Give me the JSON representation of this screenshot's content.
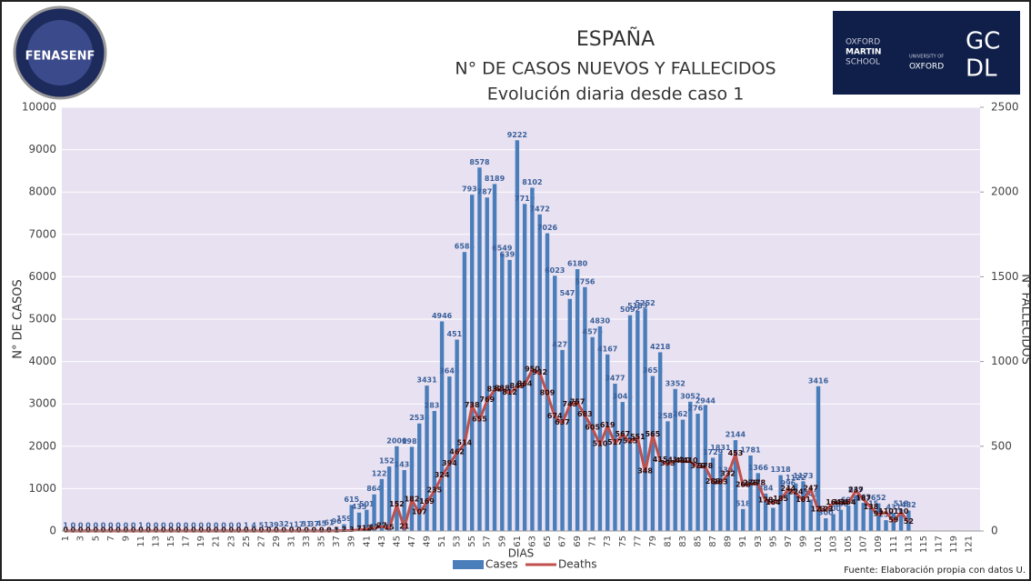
{
  "chart_data": {
    "type": "bar-line",
    "title": "ESPAÑA",
    "subtitle": [
      "N° DE CASOS NUEVOS Y FALLECIDOS",
      "Evolución diaria desde caso 1"
    ],
    "ylabel": "N° DE CASOS",
    "y2label": "N° FALLECIDOS",
    "xlabel": "DIAS",
    "source": "Fuente: Elaboración propia con datos U.",
    "categories": [
      1,
      null,
      3,
      null,
      5,
      null,
      7,
      null,
      9,
      null,
      11,
      null,
      13,
      null,
      15,
      null,
      17,
      null,
      19,
      null,
      21,
      null,
      23,
      null,
      25,
      null,
      27,
      null,
      29,
      null,
      31,
      null,
      33,
      null,
      35,
      null,
      37,
      null,
      39,
      null,
      41,
      null,
      43,
      null,
      45,
      null,
      47,
      null,
      49,
      null,
      51,
      null,
      53,
      null,
      55,
      null,
      57,
      null,
      59,
      null,
      61,
      null,
      63,
      null,
      65,
      null,
      67,
      null,
      69,
      null,
      71,
      null,
      73,
      null,
      75,
      null,
      77,
      null,
      79,
      null,
      81,
      null,
      83,
      null,
      85,
      null,
      87,
      null,
      89,
      null,
      91,
      null,
      93,
      null,
      95,
      null,
      97,
      null,
      99,
      null,
      101,
      null,
      103,
      null,
      105,
      null,
      107,
      null,
      109,
      null,
      111,
      null,
      113,
      null,
      115,
      null,
      117,
      null,
      119,
      null,
      121,
      null
    ],
    "series": [
      {
        "name": "Cases",
        "color": "#4a7ebb",
        "values": [
          1,
          0,
          0,
          0,
          0,
          0,
          0,
          0,
          0,
          0,
          1,
          0,
          0,
          0,
          0,
          0,
          0,
          0,
          0,
          0,
          0,
          0,
          0,
          0,
          1,
          4,
          5,
          13,
          9,
          32,
          1,
          17,
          31,
          37,
          45,
          61,
          96,
          159,
          615,
          435,
          501,
          864,
          1227,
          1522,
          2000,
          1438,
          1987,
          2538,
          3431,
          2833,
          4946,
          3646,
          4517,
          6584,
          7937,
          8578,
          7871,
          8189,
          6549,
          6398,
          9222,
          7719,
          8102,
          7472,
          7026,
          6023,
          4273,
          5478,
          6180,
          5756,
          4576,
          4830,
          4167,
          3477,
          3045,
          5092,
          5183,
          5252,
          3658,
          4218,
          2588,
          3352,
          2627,
          3052,
          2767,
          2944,
          1729,
          1831,
          1308,
          2144,
          518,
          1781,
          1366,
          884,
          546,
          1318,
          996,
          1122,
          1173,
          743,
          3416,
          300,
          400,
          500,
          600,
          849,
          663,
          515,
          652,
          256,
          431,
          518,
          482,
          null,
          null,
          null,
          null,
          null,
          null,
          null,
          null,
          null
        ]
      },
      {
        "name": "Deaths",
        "color": "#c0504d",
        "axis": "y2",
        "values": [
          0,
          0,
          0,
          0,
          0,
          0,
          0,
          0,
          0,
          0,
          0,
          0,
          0,
          0,
          0,
          0,
          0,
          0,
          0,
          0,
          0,
          0,
          0,
          0,
          0,
          0,
          0,
          0,
          0,
          0,
          0,
          0,
          0,
          0,
          0,
          0,
          1,
          2,
          3,
          7,
          12,
          17,
          27,
          15,
          152,
          21,
          182,
          107,
          169,
          235,
          324,
          394,
          462,
          514,
          738,
          655,
          769,
          832,
          838,
          812,
          849,
          864,
          950,
          932,
          809,
          674,
          637,
          743,
          757,
          683,
          605,
          510,
          619,
          517,
          567,
          525,
          551,
          348,
          565,
          415,
          393,
          414,
          410,
          410,
          379,
          378,
          288,
          283,
          332,
          453,
          268,
          278,
          278,
          178,
          164,
          185,
          244,
          224,
          181,
          247,
          123,
          123,
          164,
          164,
          164,
          237,
          187,
          138,
          97,
          110,
          59,
          110,
          52,
          null,
          null,
          null,
          null,
          null,
          null,
          null,
          null,
          null
        ]
      }
    ],
    "ylim": [
      0,
      10000
    ],
    "yticks": [
      0,
      1000,
      2000,
      3000,
      4000,
      5000,
      6000,
      7000,
      8000,
      9000,
      10000
    ],
    "y2lim": [
      0,
      2500
    ],
    "y2ticks": [
      0,
      500,
      1000,
      1500,
      2000,
      2500
    ],
    "grid": true,
    "legend": "bottom"
  },
  "logos": {
    "left": "FENASENF",
    "oxford": [
      "OXFORD",
      "MARTIN",
      "SCHOOL"
    ],
    "university": [
      "UNIVERSITY OF",
      "OXFORD"
    ],
    "gcdl": [
      "GC",
      "DL"
    ]
  }
}
